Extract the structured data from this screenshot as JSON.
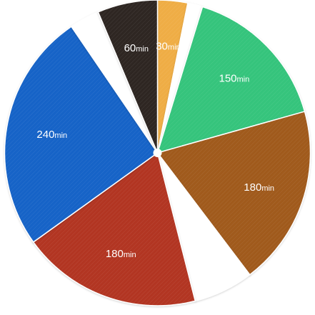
{
  "chart_data": {
    "type": "pie",
    "values": [
      30,
      15,
      150,
      180,
      60,
      180,
      240,
      30,
      60
    ],
    "labels": [
      "30",
      "",
      "150",
      "180",
      "",
      "180",
      "240",
      "",
      "60"
    ],
    "unit": "min",
    "colors": [
      "#efad45",
      "#ffffff",
      "#34c47c",
      "#a05a1f",
      "#ffffff",
      "#b23521",
      "#1763c7",
      "#ffffff",
      "#2f2723"
    ]
  },
  "style": {
    "texture": "diagonal-hatch",
    "labelColor": "#ffffff"
  }
}
